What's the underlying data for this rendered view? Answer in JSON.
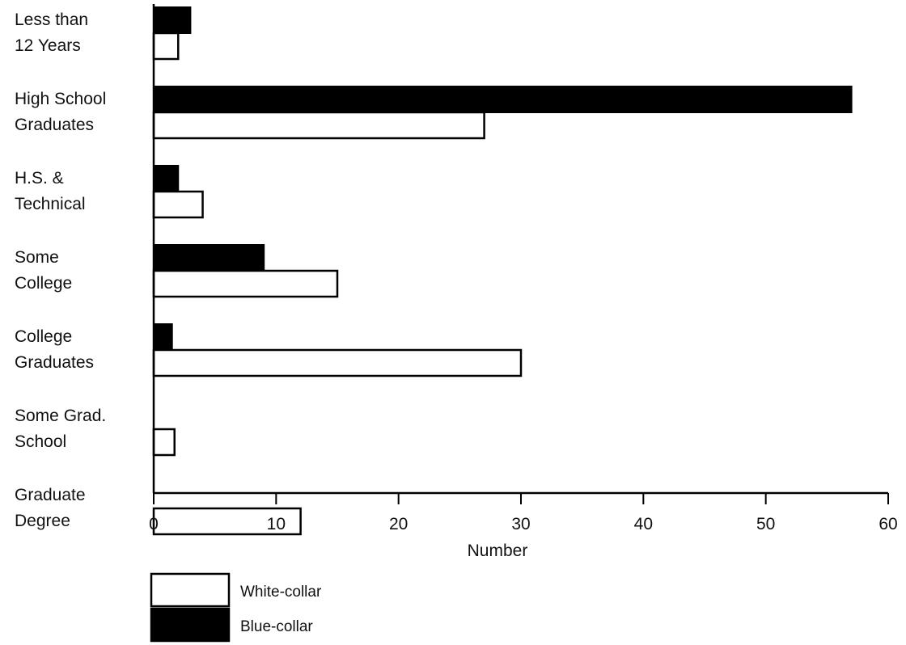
{
  "chart_data": {
    "type": "bar",
    "orientation": "horizontal",
    "categories": [
      [
        "Less  than",
        "12 Years"
      ],
      [
        "High School",
        "Graduates"
      ],
      [
        "H.S. &",
        "Technical"
      ],
      [
        "Some",
        "College"
      ],
      [
        "College",
        "Graduates"
      ],
      [
        "Some Grad.",
        "School"
      ],
      [
        "Graduate",
        "Degree"
      ]
    ],
    "series": [
      {
        "name": "Blue-collar",
        "color": "#000000",
        "values": [
          3,
          57,
          2,
          9,
          1.5,
          0,
          0
        ]
      },
      {
        "name": "White-collar",
        "color": "#ffffff",
        "values": [
          2,
          27,
          4,
          15,
          30,
          1.7,
          12
        ]
      }
    ],
    "xlabel": "Number",
    "ylabel": "",
    "xlim": [
      0,
      60
    ],
    "xticks": [
      0,
      10,
      20,
      30,
      40,
      50,
      60
    ],
    "grid": false,
    "legend_position": "bottom-left"
  }
}
